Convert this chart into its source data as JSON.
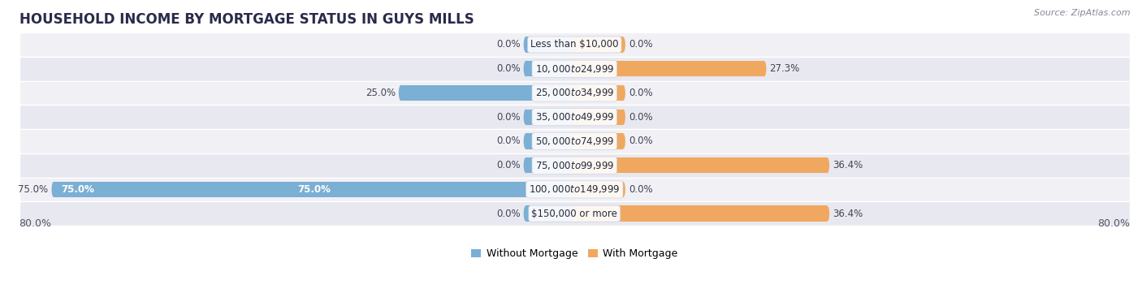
{
  "title": "HOUSEHOLD INCOME BY MORTGAGE STATUS IN GUYS MILLS",
  "source": "Source: ZipAtlas.com",
  "categories": [
    "Less than $10,000",
    "$10,000 to $24,999",
    "$25,000 to $34,999",
    "$35,000 to $49,999",
    "$50,000 to $74,999",
    "$75,000 to $99,999",
    "$100,000 to $149,999",
    "$150,000 or more"
  ],
  "without_mortgage": [
    0.0,
    0.0,
    25.0,
    0.0,
    0.0,
    0.0,
    75.0,
    0.0
  ],
  "with_mortgage": [
    0.0,
    27.3,
    0.0,
    0.0,
    0.0,
    36.4,
    0.0,
    36.4
  ],
  "color_without": "#7bafd4",
  "color_with": "#f0a860",
  "row_colors": [
    "#f0f0f5",
    "#e8e8f0"
  ],
  "xlim": [
    -80.0,
    80.0
  ],
  "axis_label_left": "80.0%",
  "axis_label_right": "80.0%",
  "legend_labels": [
    "Without Mortgage",
    "With Mortgage"
  ],
  "title_fontsize": 12,
  "source_fontsize": 8,
  "axis_fontsize": 9,
  "label_fontsize": 8.5,
  "category_fontsize": 8.5,
  "bar_height": 0.65,
  "stub_size": 7.0
}
